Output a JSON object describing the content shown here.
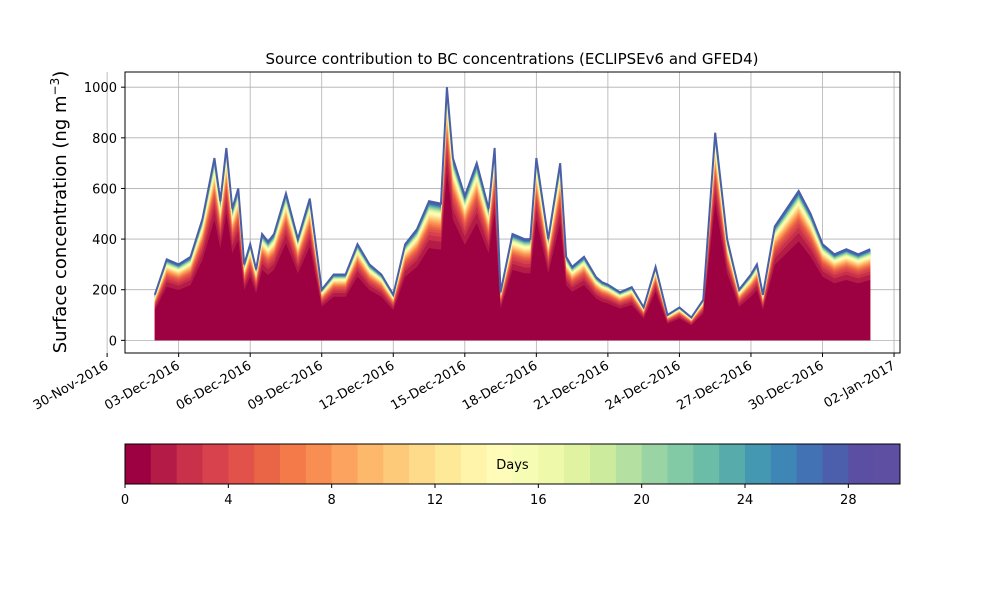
{
  "chart_data": {
    "type": "area",
    "title": "Source contribution to BC concentrations (ECLIPSEv6 and GFED4)",
    "ylabel": "Surface concentration (ng m",
    "ylabel_sup": "−3",
    "ylabel_close": ")",
    "ylim": [
      -50,
      1060
    ],
    "yticks": [
      0,
      200,
      400,
      600,
      800,
      1000
    ],
    "xlim": [
      "2016-11-30T18:00",
      "2017-01-02T06:00"
    ],
    "xticks": [
      "2016-11-30",
      "2016-12-03",
      "2016-12-06",
      "2016-12-09",
      "2016-12-12",
      "2016-12-15",
      "2016-12-18",
      "2016-12-21",
      "2016-12-24",
      "2016-12-27",
      "2016-12-30",
      "2017-01-02"
    ],
    "xticklabels": [
      "30-Nov-2016",
      "03-Dec-2016",
      "06-Dec-2016",
      "09-Dec-2016",
      "12-Dec-2016",
      "15-Dec-2016",
      "18-Dec-2016",
      "21-Dec-2016",
      "24-Dec-2016",
      "27-Dec-2016",
      "30-Dec-2016",
      "02-Jan-2017"
    ],
    "grid": true,
    "x": [
      "2016-12-02T00:00",
      "2016-12-02T12:00",
      "2016-12-03T00:00",
      "2016-12-03T12:00",
      "2016-12-04T00:00",
      "2016-12-04T12:00",
      "2016-12-04T18:00",
      "2016-12-05T00:00",
      "2016-12-05T06:00",
      "2016-12-05T12:00",
      "2016-12-05T18:00",
      "2016-12-06T00:00",
      "2016-12-06T06:00",
      "2016-12-06T12:00",
      "2016-12-06T18:00",
      "2016-12-07T00:00",
      "2016-12-07T12:00",
      "2016-12-08T00:00",
      "2016-12-08T12:00",
      "2016-12-09T00:00",
      "2016-12-09T12:00",
      "2016-12-10T00:00",
      "2016-12-10T12:00",
      "2016-12-11T00:00",
      "2016-12-11T12:00",
      "2016-12-12T00:00",
      "2016-12-12T12:00",
      "2016-12-13T00:00",
      "2016-12-13T12:00",
      "2016-12-14T00:00",
      "2016-12-14T06:00",
      "2016-12-14T12:00",
      "2016-12-15T00:00",
      "2016-12-15T12:00",
      "2016-12-16T00:00",
      "2016-12-16T06:00",
      "2016-12-16T12:00",
      "2016-12-17T00:00",
      "2016-12-17T12:00",
      "2016-12-17T18:00",
      "2016-12-18T00:00",
      "2016-12-18T12:00",
      "2016-12-19T00:00",
      "2016-12-19T06:00",
      "2016-12-19T12:00",
      "2016-12-20T00:00",
      "2016-12-20T12:00",
      "2016-12-20T18:00",
      "2016-12-21T00:00",
      "2016-12-21T12:00",
      "2016-12-22T00:00",
      "2016-12-22T12:00",
      "2016-12-23T00:00",
      "2016-12-23T12:00",
      "2016-12-24T00:00",
      "2016-12-24T12:00",
      "2016-12-25T00:00",
      "2016-12-25T12:00",
      "2016-12-26T00:00",
      "2016-12-26T12:00",
      "2016-12-27T00:00",
      "2016-12-27T06:00",
      "2016-12-27T12:00",
      "2016-12-28T00:00",
      "2016-12-28T12:00",
      "2016-12-29T00:00",
      "2016-12-29T12:00",
      "2016-12-30T00:00",
      "2016-12-30T12:00",
      "2016-12-31T00:00",
      "2016-12-31T12:00",
      "2017-01-01T00:00"
    ],
    "total": [
      180,
      320,
      300,
      330,
      480,
      720,
      550,
      760,
      520,
      600,
      300,
      380,
      280,
      420,
      390,
      420,
      580,
      400,
      560,
      200,
      260,
      260,
      380,
      300,
      260,
      180,
      380,
      440,
      550,
      540,
      1000,
      720,
      570,
      700,
      520,
      760,
      190,
      420,
      400,
      400,
      720,
      400,
      700,
      330,
      290,
      330,
      250,
      230,
      220,
      190,
      210,
      130,
      290,
      100,
      130,
      90,
      160,
      820,
      400,
      200,
      260,
      300,
      180,
      450,
      520,
      590,
      500,
      380,
      340,
      360,
      340,
      360
    ],
    "color_levels": 31,
    "colorbar": {
      "label": "Days",
      "range": [
        0,
        30
      ],
      "ticks": [
        0,
        4,
        8,
        12,
        16,
        20,
        24,
        28
      ],
      "colors": [
        "#9e0142",
        "#b41b47",
        "#c9304a",
        "#d8424c",
        "#e2524a",
        "#ea6446",
        "#f47a4a",
        "#f98e52",
        "#fca45f",
        "#fdb86b",
        "#fdca79",
        "#fedb8a",
        "#fee999",
        "#fff4aa",
        "#fffbb8",
        "#f7fcb4",
        "#eef9a9",
        "#e0f3a0",
        "#cceb9d",
        "#b4e0a2",
        "#9bd4a4",
        "#82c9a5",
        "#6bbda8",
        "#57acab",
        "#4598b1",
        "#3e86b6",
        "#4272b4",
        "#4c5fac",
        "#5b4fa3",
        "#5e4fa2"
      ]
    }
  }
}
